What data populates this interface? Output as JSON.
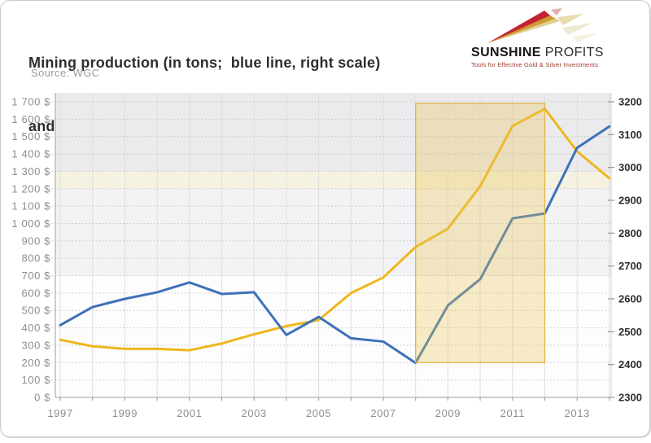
{
  "header": {
    "title_line1": "Mining production (in tons;  blue line, right scale)",
    "title_line2": "and average gold price (yellow line, left scale)",
    "source": "Source: WGC"
  },
  "logo": {
    "name_bold": "SUNSHINE",
    "name_light": " PROFITS",
    "tagline": "Tools for Effective Gold & Silver Investments",
    "colors": {
      "ray_red": "#c32031",
      "ray_gold": "#cf9a2f",
      "ray_pale": "#dfcf96",
      "echo_red": "#e5aeae",
      "echo_gold": "#e9dcae",
      "echo_tan": "#efe9d2",
      "text": "#141414",
      "tagline": "#9e3928"
    }
  },
  "chart_data": {
    "type": "line",
    "title": "Mining production (in tons; blue line, right scale) and average gold price (yellow line, left scale)",
    "source": "WGC",
    "x": [
      1997,
      1998,
      1999,
      2000,
      2001,
      2002,
      2003,
      2004,
      2005,
      2006,
      2007,
      2008,
      2009,
      2010,
      2011,
      2012,
      2013,
      2014
    ],
    "x_tick_labels": [
      "1997",
      "1999",
      "2001",
      "2003",
      "2005",
      "2007",
      "2009",
      "2011",
      "2013"
    ],
    "series": [
      {
        "name": "Average gold price (left scale, $ per oz)",
        "axis": "left",
        "color": "#eeb71d",
        "values": [
          331,
          294,
          279,
          279,
          271,
          310,
          363,
          410,
          445,
          600,
          690,
          865,
          970,
          1215,
          1560,
          1660,
          1415,
          1260
        ]
      },
      {
        "name": "Mining production (right scale, tons)",
        "axis": "right",
        "color": "#3d72b8",
        "values": [
          2520,
          2575,
          2600,
          2620,
          2650,
          2615,
          2620,
          2490,
          2545,
          2480,
          2470,
          2405,
          2580,
          2660,
          2845,
          2860,
          3060,
          3125
        ]
      }
    ],
    "left_axis": {
      "min": 0,
      "max": 1700,
      "step": 100,
      "tick_labels": [
        "0 $",
        "100 $",
        "200 $",
        "300 $",
        "400 $",
        "500 $",
        "600 $",
        "700 $",
        "800 $",
        "900 $",
        "1 000 $",
        "1 100 $",
        "1 200 $",
        "1 300 $",
        "1 400 $",
        "1 500 $",
        "1 600 $",
        "1 700 $"
      ]
    },
    "right_axis": {
      "min": 2300,
      "max": 3200,
      "step": 100,
      "tick_labels": [
        "2300",
        "2400",
        "2500",
        "2600",
        "2700",
        "2800",
        "2900",
        "3000",
        "3100",
        "3200"
      ]
    },
    "background_bands": [
      {
        "from": 1300,
        "to": 1760,
        "color": "#ebebed"
      },
      {
        "from": 1200,
        "to": 1300,
        "color": "#f6f2e1"
      },
      {
        "from": 700,
        "to": 1200,
        "color": "#f3f3f5"
      },
      {
        "from": 0,
        "to": 700,
        "color": "#fdfdfe"
      }
    ],
    "highlight_region": {
      "from_x": 2008,
      "to_x": 2012,
      "bottom_value": 200,
      "top_value": 1690,
      "fill": "rgba(233,196,83,0.32)",
      "border": "#e2ba48"
    },
    "grid": {
      "vertical_color": "#dfdfe3",
      "horizontal_color": "#c5c5ca",
      "axis_color": "#aeaeb2",
      "tick_color": "#97979b"
    },
    "legend_position": "none",
    "grid_on": true
  }
}
